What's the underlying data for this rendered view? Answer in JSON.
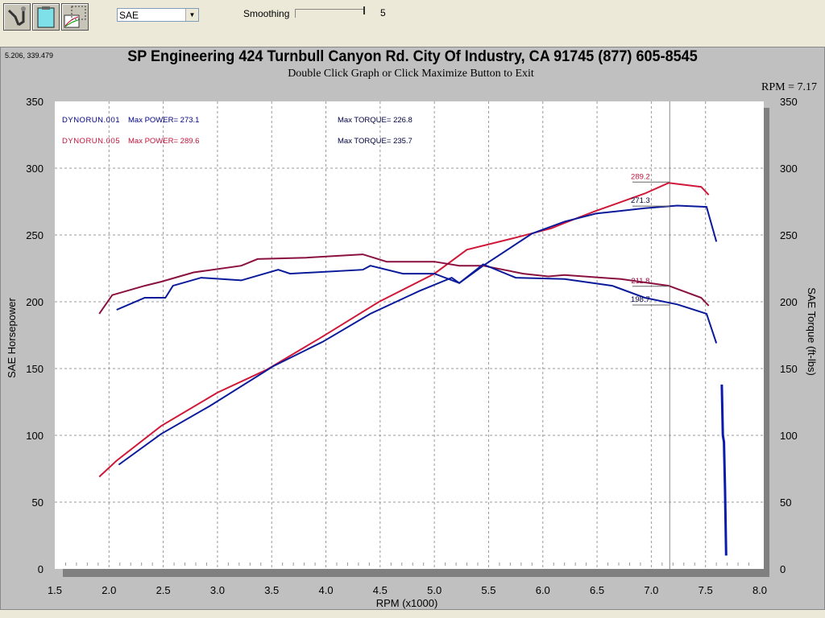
{
  "toolbar": {
    "buttons": [
      {
        "icon": "wrench-tools-icon"
      },
      {
        "icon": "clipboard-icon"
      },
      {
        "icon": "graph-overlay-icon"
      }
    ],
    "unit_select": "SAE",
    "smoothing_label": "Smoothing",
    "smoothing_value": "5",
    "smoothing_level": 5
  },
  "chart_header": {
    "cursor_coords": "5.206, 339.479",
    "title": "SP Engineering 424 Turnbull Canyon Rd. City Of Industry, CA 91745 (877) 605-8545",
    "subtitle": "Double Click Graph or Click Maximize Button to Exit",
    "rpm_readout": "RPM = 7.17"
  },
  "chart_data": {
    "type": "line",
    "xlabel": "RPM (x1000)",
    "ylabel": "SAE Horsepower",
    "y2label": "SAE Torque (ft-lbs)",
    "xlim": [
      1.5,
      8.0
    ],
    "ylim": [
      0,
      350
    ],
    "xticks": [
      "1.5",
      "2.0",
      "2.5",
      "3.0",
      "3.5",
      "4.0",
      "4.5",
      "5.0",
      "5.5",
      "6.0",
      "6.5",
      "7.0",
      "7.5",
      "8.0"
    ],
    "yticks": [
      "0",
      "50",
      "100",
      "150",
      "200",
      "250",
      "300",
      "350"
    ],
    "grid": true,
    "cursor_rpm": 7.17,
    "legend": [
      {
        "run": "DYNORUN.001",
        "power": "Max POWER= 273.1",
        "torque": "Max TORQUE= 226.8",
        "color": "#000080"
      },
      {
        "run": "DYNORUN.005",
        "power": "Max POWER= 289.6",
        "torque": "Max TORQUE= 235.7",
        "color": "#c0143c"
      }
    ],
    "series": [
      {
        "name": "DYNORUN.005",
        "kind": "power",
        "color": "#d01838",
        "x": [
          1.91,
          2.07,
          2.48,
          3.0,
          3.45,
          3.97,
          4.49,
          5.0,
          5.3,
          5.75,
          6.08,
          6.2,
          6.49,
          6.94,
          7.16,
          7.46,
          7.53
        ],
        "y": [
          69,
          81,
          107,
          132,
          149,
          174,
          200,
          221,
          239,
          248,
          255,
          259,
          268,
          281,
          289,
          286,
          280
        ]
      },
      {
        "name": "DYNORUN.001",
        "kind": "power",
        "color": "#0a1a9a",
        "x": [
          2.09,
          2.48,
          2.93,
          3.52,
          3.97,
          4.41,
          4.86,
          5.16,
          5.23,
          5.45,
          5.9,
          6.2,
          6.49,
          6.94,
          7.24,
          7.51,
          7.6
        ],
        "y": [
          78,
          101,
          122,
          152,
          170,
          191,
          208,
          218,
          214,
          227,
          251,
          260,
          266,
          270,
          272,
          271,
          245
        ]
      },
      {
        "name": "DYNORUN.005",
        "kind": "torque",
        "color": "#8a1040",
        "x": [
          1.91,
          2.03,
          2.33,
          2.48,
          2.78,
          3.22,
          3.37,
          3.82,
          4.34,
          4.56,
          5.0,
          5.23,
          5.45,
          5.82,
          6.05,
          6.2,
          6.72,
          7.16,
          7.46,
          7.53
        ],
        "y": [
          191,
          205,
          212,
          215,
          222,
          227,
          232,
          233,
          235.5,
          230,
          230,
          227,
          227,
          221,
          219,
          220,
          217,
          212,
          203,
          197
        ]
      },
      {
        "name": "DYNORUN.001",
        "kind": "torque",
        "color": "#0a1a9a",
        "x": [
          2.07,
          2.33,
          2.52,
          2.59,
          2.85,
          3.22,
          3.56,
          3.67,
          4.34,
          4.41,
          4.71,
          5.0,
          5.23,
          5.45,
          5.75,
          6.2,
          6.64,
          6.94,
          7.24,
          7.51,
          7.6
        ],
        "y": [
          194,
          203,
          203,
          212,
          218,
          216,
          224,
          221,
          224,
          227,
          221,
          221,
          214,
          228,
          218,
          217,
          212,
          203,
          198,
          191,
          169
        ]
      },
      {
        "name": "",
        "kind": "trace",
        "color": "#0a1aaa",
        "x": [
          7.65,
          7.66,
          7.67,
          7.68,
          7.69
        ],
        "y": [
          138,
          100,
          95,
          60,
          10
        ]
      }
    ],
    "annotations": [
      {
        "text": "289.2",
        "x": 6.9,
        "y": 292,
        "color": "#c0143c"
      },
      {
        "text": "271.3",
        "x": 6.9,
        "y": 274,
        "color": "#000040"
      },
      {
        "text": "211.8",
        "x": 6.9,
        "y": 214,
        "color": "#8a1040"
      },
      {
        "text": "198.7",
        "x": 6.9,
        "y": 200,
        "color": "#000040"
      }
    ]
  }
}
